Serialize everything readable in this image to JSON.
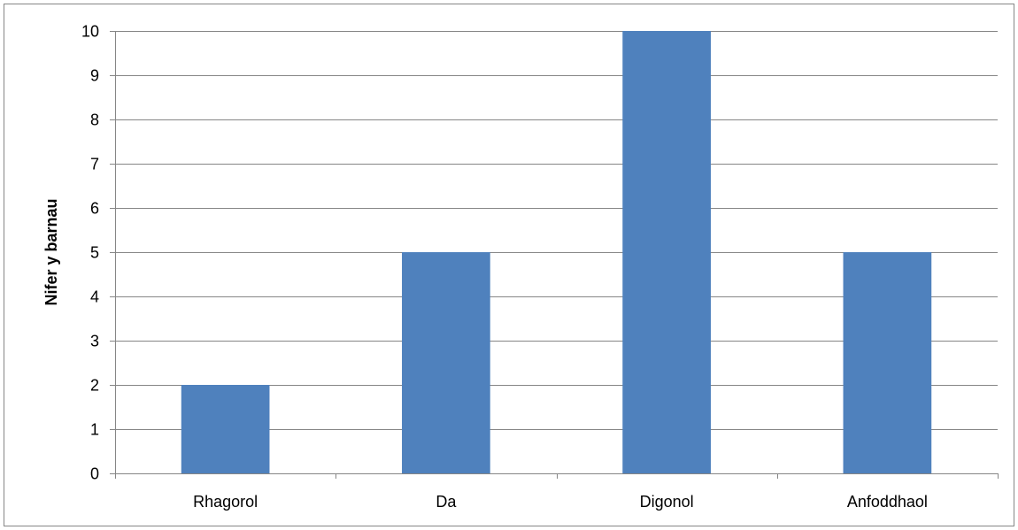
{
  "chart_data": {
    "type": "bar",
    "categories": [
      "Rhagorol",
      "Da",
      "Digonol",
      "Anfoddhaol"
    ],
    "values": [
      2,
      5,
      10,
      5
    ],
    "title": "",
    "xlabel": "",
    "ylabel": "Nifer y barnau",
    "ylim": [
      0,
      10
    ],
    "yticks": [
      0,
      1,
      2,
      3,
      4,
      5,
      6,
      7,
      8,
      9,
      10
    ],
    "grid": true,
    "legend": "none",
    "bar_color": "#4F81BD",
    "grid_color": "#868686"
  }
}
